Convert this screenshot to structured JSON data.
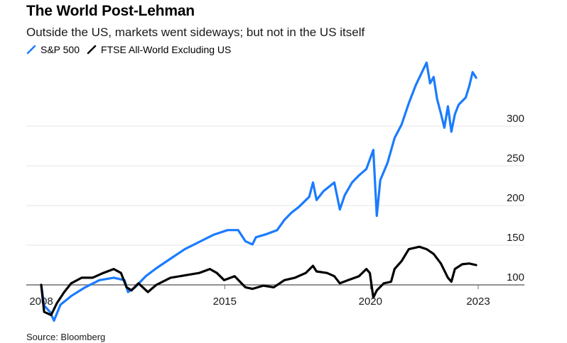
{
  "header": {
    "title": "The World Post-Lehman",
    "subtitle": "Outside the US, markets went sideways; but not in the US itself"
  },
  "footer": {
    "source": "Source: Bloomberg"
  },
  "chart_data": {
    "type": "line",
    "title": "The World Post-Lehman",
    "subtitle": "Outside the US, markets went sideways; but not in the US itself",
    "xlabel": "",
    "ylabel": "",
    "ylim": [
      100,
      300
    ],
    "y_ticks": [
      100,
      150,
      200,
      250,
      300
    ],
    "x_ticks": [
      {
        "label": "2008",
        "t": 2008.7
      },
      {
        "label": "2015",
        "t": 2015.0
      },
      {
        "label": "2020",
        "t": 2020.0
      },
      {
        "label": "2023",
        "t": 2023.7
      }
    ],
    "grid": true,
    "y_axis_side": "right",
    "legend_position": "top-left",
    "series": [
      {
        "name": "S&P 500",
        "color": "#1a7bff",
        "points": [
          [
            2008.7,
            100
          ],
          [
            2008.8,
            74
          ],
          [
            2009.0,
            66
          ],
          [
            2009.14,
            55
          ],
          [
            2009.36,
            75
          ],
          [
            2009.73,
            86
          ],
          [
            2010.21,
            97
          ],
          [
            2010.7,
            106
          ],
          [
            2011.19,
            109
          ],
          [
            2011.56,
            106
          ],
          [
            2011.68,
            91
          ],
          [
            2011.92,
            97
          ],
          [
            2012.29,
            111
          ],
          [
            2012.65,
            121
          ],
          [
            2013.14,
            133
          ],
          [
            2013.63,
            145
          ],
          [
            2014.12,
            154
          ],
          [
            2014.61,
            163
          ],
          [
            2015.1,
            169
          ],
          [
            2015.46,
            169
          ],
          [
            2015.71,
            155
          ],
          [
            2015.95,
            151
          ],
          [
            2016.07,
            160
          ],
          [
            2016.44,
            164
          ],
          [
            2016.8,
            169
          ],
          [
            2017.05,
            182
          ],
          [
            2017.29,
            191
          ],
          [
            2017.54,
            198
          ],
          [
            2017.9,
            211
          ],
          [
            2018.03,
            229
          ],
          [
            2018.15,
            207
          ],
          [
            2018.39,
            218
          ],
          [
            2018.76,
            229
          ],
          [
            2018.95,
            195
          ],
          [
            2019.12,
            213
          ],
          [
            2019.37,
            229
          ],
          [
            2019.61,
            238
          ],
          [
            2019.86,
            246
          ],
          [
            2020.1,
            270
          ],
          [
            2020.22,
            187
          ],
          [
            2020.34,
            232
          ],
          [
            2020.59,
            254
          ],
          [
            2020.83,
            285
          ],
          [
            2021.07,
            302
          ],
          [
            2021.32,
            329
          ],
          [
            2021.56,
            352
          ],
          [
            2021.81,
            371
          ],
          [
            2021.93,
            380
          ],
          [
            2022.05,
            354
          ],
          [
            2022.17,
            362
          ],
          [
            2022.29,
            334
          ],
          [
            2022.42,
            316
          ],
          [
            2022.54,
            298
          ],
          [
            2022.66,
            325
          ],
          [
            2022.78,
            293
          ],
          [
            2022.9,
            315
          ],
          [
            2023.03,
            327
          ],
          [
            2023.27,
            336
          ],
          [
            2023.39,
            350
          ],
          [
            2023.51,
            368
          ],
          [
            2023.63,
            361
          ]
        ]
      },
      {
        "name": "FTSE All-World Excluding US",
        "color": "#000000",
        "points": [
          [
            2008.7,
            100
          ],
          [
            2008.8,
            66
          ],
          [
            2009.04,
            62
          ],
          [
            2009.24,
            77
          ],
          [
            2009.49,
            91
          ],
          [
            2009.73,
            102
          ],
          [
            2010.09,
            109
          ],
          [
            2010.46,
            109
          ],
          [
            2010.83,
            115
          ],
          [
            2011.19,
            120
          ],
          [
            2011.44,
            115
          ],
          [
            2011.63,
            97
          ],
          [
            2011.8,
            93
          ],
          [
            2012.04,
            102
          ],
          [
            2012.36,
            91
          ],
          [
            2012.65,
            100
          ],
          [
            2013.14,
            109
          ],
          [
            2013.63,
            112
          ],
          [
            2014.12,
            115
          ],
          [
            2014.49,
            120
          ],
          [
            2014.73,
            115
          ],
          [
            2014.98,
            106
          ],
          [
            2015.34,
            111
          ],
          [
            2015.71,
            97
          ],
          [
            2015.95,
            95
          ],
          [
            2016.32,
            99
          ],
          [
            2016.68,
            97
          ],
          [
            2017.05,
            106
          ],
          [
            2017.41,
            109
          ],
          [
            2017.78,
            115
          ],
          [
            2018.03,
            124
          ],
          [
            2018.15,
            117
          ],
          [
            2018.51,
            115
          ],
          [
            2018.76,
            111
          ],
          [
            2018.95,
            102
          ],
          [
            2019.24,
            106
          ],
          [
            2019.61,
            111
          ],
          [
            2019.86,
            120
          ],
          [
            2019.98,
            115
          ],
          [
            2020.1,
            84
          ],
          [
            2020.22,
            93
          ],
          [
            2020.46,
            102
          ],
          [
            2020.71,
            104
          ],
          [
            2020.83,
            120
          ],
          [
            2021.07,
            130
          ],
          [
            2021.32,
            145
          ],
          [
            2021.68,
            148
          ],
          [
            2021.93,
            145
          ],
          [
            2022.17,
            139
          ],
          [
            2022.42,
            127
          ],
          [
            2022.66,
            109
          ],
          [
            2022.78,
            104
          ],
          [
            2022.9,
            120
          ],
          [
            2023.15,
            126
          ],
          [
            2023.39,
            127
          ],
          [
            2023.63,
            125
          ]
        ]
      }
    ]
  }
}
